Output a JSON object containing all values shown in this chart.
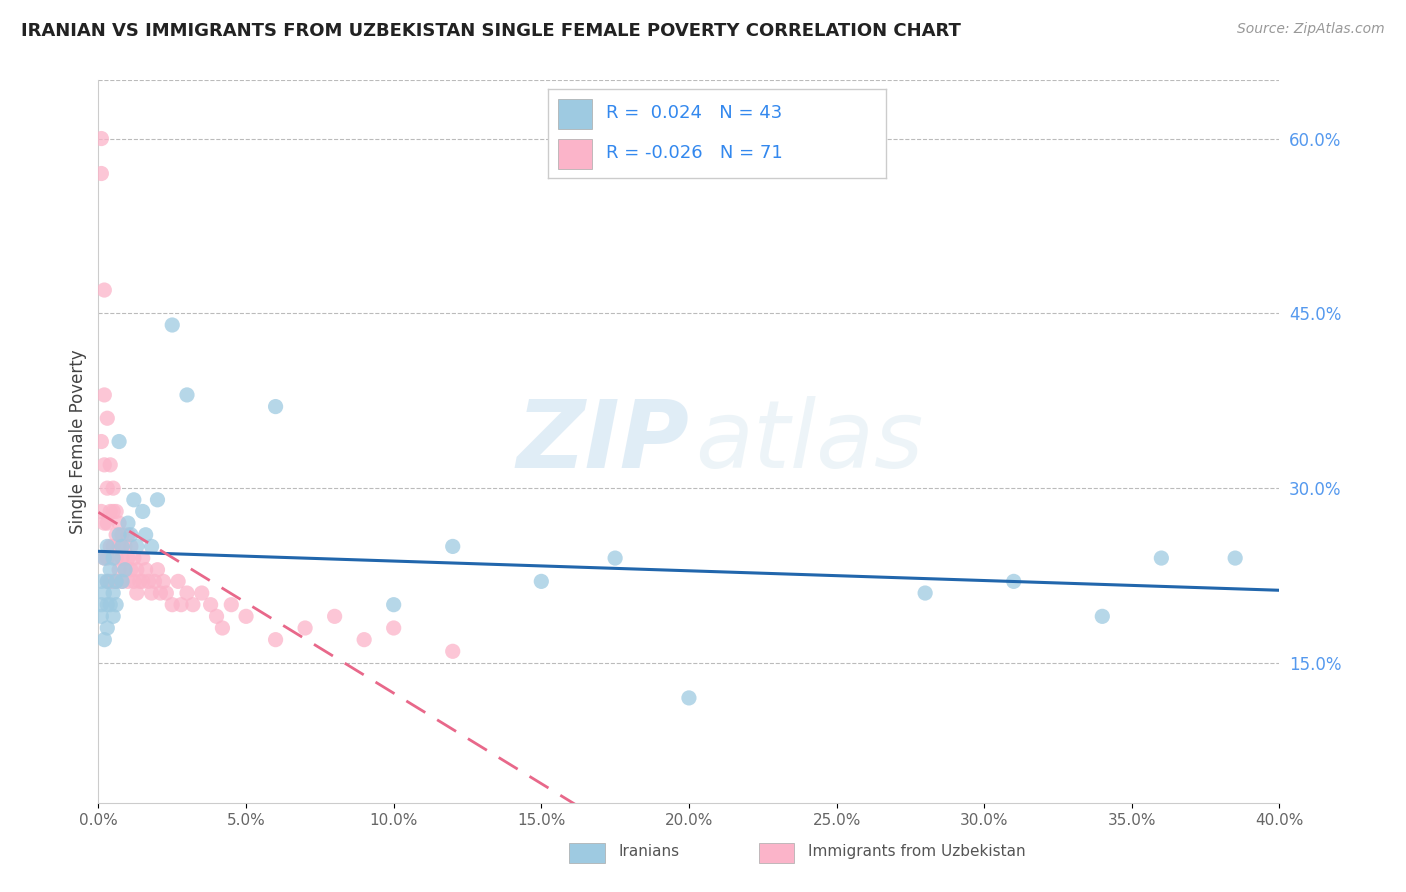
{
  "title": "IRANIAN VS IMMIGRANTS FROM UZBEKISTAN SINGLE FEMALE POVERTY CORRELATION CHART",
  "source": "Source: ZipAtlas.com",
  "xlabel_iranians": "Iranians",
  "xlabel_uzbekistan": "Immigrants from Uzbekistan",
  "ylabel": "Single Female Poverty",
  "r_iranians": 0.024,
  "n_iranians": 43,
  "r_uzbekistan": -0.026,
  "n_uzbekistan": 71,
  "xlim": [
    0.0,
    0.4
  ],
  "ylim": [
    0.03,
    0.65
  ],
  "xticks": [
    0.0,
    0.05,
    0.1,
    0.15,
    0.2,
    0.25,
    0.3,
    0.35,
    0.4
  ],
  "yticks_right": [
    0.15,
    0.3,
    0.45,
    0.6
  ],
  "color_iranians": "#9ecae1",
  "color_uzbekistan": "#fbb4c9",
  "color_iranians_line": "#2166ac",
  "color_uzbekistan_line": "#e8688a",
  "watermark_zip": "ZIP",
  "watermark_atlas": "atlas",
  "iranians_x": [
    0.001,
    0.001,
    0.001,
    0.002,
    0.002,
    0.002,
    0.003,
    0.003,
    0.003,
    0.003,
    0.004,
    0.004,
    0.005,
    0.005,
    0.005,
    0.006,
    0.006,
    0.007,
    0.007,
    0.008,
    0.008,
    0.009,
    0.01,
    0.011,
    0.012,
    0.013,
    0.015,
    0.016,
    0.018,
    0.02,
    0.025,
    0.03,
    0.06,
    0.1,
    0.12,
    0.15,
    0.175,
    0.2,
    0.28,
    0.31,
    0.34,
    0.36,
    0.385
  ],
  "iranians_y": [
    0.19,
    0.22,
    0.2,
    0.17,
    0.21,
    0.24,
    0.2,
    0.18,
    0.22,
    0.25,
    0.2,
    0.23,
    0.21,
    0.19,
    0.24,
    0.22,
    0.2,
    0.34,
    0.26,
    0.22,
    0.25,
    0.23,
    0.27,
    0.26,
    0.29,
    0.25,
    0.28,
    0.26,
    0.25,
    0.29,
    0.44,
    0.38,
    0.37,
    0.2,
    0.25,
    0.22,
    0.24,
    0.12,
    0.21,
    0.22,
    0.19,
    0.24,
    0.24
  ],
  "uzbekistan_x": [
    0.001,
    0.001,
    0.001,
    0.001,
    0.002,
    0.002,
    0.002,
    0.002,
    0.002,
    0.003,
    0.003,
    0.003,
    0.003,
    0.003,
    0.004,
    0.004,
    0.004,
    0.004,
    0.005,
    0.005,
    0.005,
    0.005,
    0.006,
    0.006,
    0.006,
    0.006,
    0.007,
    0.007,
    0.007,
    0.008,
    0.008,
    0.008,
    0.009,
    0.009,
    0.01,
    0.01,
    0.01,
    0.011,
    0.011,
    0.012,
    0.012,
    0.013,
    0.013,
    0.014,
    0.015,
    0.015,
    0.016,
    0.017,
    0.018,
    0.019,
    0.02,
    0.021,
    0.022,
    0.023,
    0.025,
    0.027,
    0.028,
    0.03,
    0.032,
    0.035,
    0.038,
    0.04,
    0.042,
    0.045,
    0.05,
    0.06,
    0.07,
    0.08,
    0.09,
    0.1,
    0.12
  ],
  "uzbekistan_y": [
    0.6,
    0.57,
    0.34,
    0.28,
    0.47,
    0.38,
    0.32,
    0.27,
    0.24,
    0.36,
    0.3,
    0.27,
    0.24,
    0.22,
    0.32,
    0.28,
    0.25,
    0.22,
    0.3,
    0.28,
    0.25,
    0.22,
    0.28,
    0.26,
    0.24,
    0.22,
    0.27,
    0.25,
    0.23,
    0.26,
    0.24,
    0.22,
    0.25,
    0.23,
    0.26,
    0.24,
    0.22,
    0.25,
    0.23,
    0.24,
    0.22,
    0.23,
    0.21,
    0.22,
    0.24,
    0.22,
    0.23,
    0.22,
    0.21,
    0.22,
    0.23,
    0.21,
    0.22,
    0.21,
    0.2,
    0.22,
    0.2,
    0.21,
    0.2,
    0.21,
    0.2,
    0.19,
    0.18,
    0.2,
    0.19,
    0.17,
    0.18,
    0.19,
    0.17,
    0.18,
    0.16
  ]
}
